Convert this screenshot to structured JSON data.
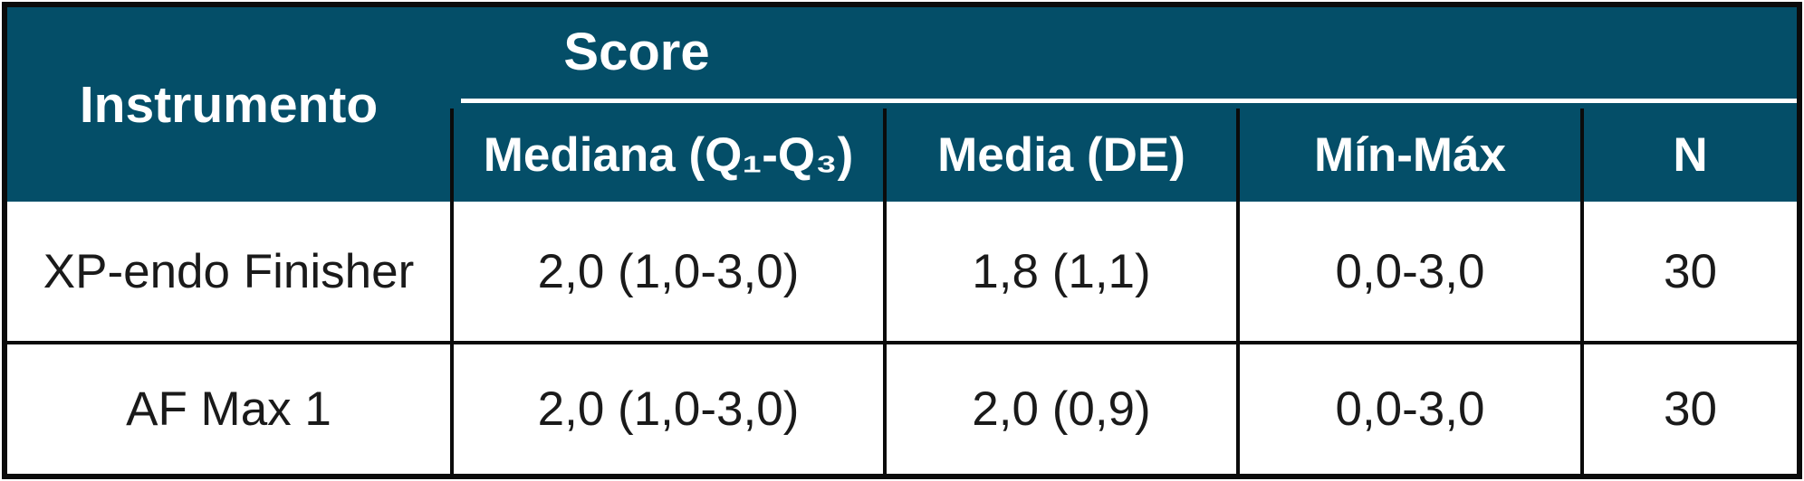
{
  "colors": {
    "header_background": "#044e68",
    "header_text": "#ffffff",
    "grid_lines": "#0b0b0b",
    "row_background": "#ffffff",
    "body_text": "#1a1a1a"
  },
  "table": {
    "corner_header": "Instrumento",
    "group_header": "Score",
    "columns": [
      "Mediana (Q₁-Q₃)",
      "Media (DE)",
      "Mín-Máx",
      "N"
    ],
    "rows": [
      {
        "instrument": "XP-endo Finisher",
        "mediana": "2,0 (1,0-3,0)",
        "media": "1,8 (1,1)",
        "minmax": "0,0-3,0",
        "n": "30"
      },
      {
        "instrument": "AF Max 1",
        "mediana": "2,0 (1,0-3,0)",
        "media": "2,0 (0,9)",
        "minmax": "0,0-3,0",
        "n": "30"
      }
    ]
  },
  "chart_data": {
    "type": "table",
    "title": "",
    "column_group": {
      "label": "Score",
      "spans": [
        "Mediana (Q₁-Q₃)",
        "Media (DE)",
        "Mín-Máx",
        "N"
      ]
    },
    "columns": [
      "Instrumento",
      "Mediana (Q₁-Q₃)",
      "Media (DE)",
      "Mín-Máx",
      "N"
    ],
    "rows": [
      [
        "XP-endo Finisher",
        "2,0 (1,0-3,0)",
        "1,8 (1,1)",
        "0,0-3,0",
        "30"
      ],
      [
        "AF Max 1",
        "2,0 (1,0-3,0)",
        "2,0 (0,9)",
        "0,0-3,0",
        "30"
      ]
    ],
    "numeric": [
      {
        "instrument": "XP-endo Finisher",
        "median": 2.0,
        "q1": 1.0,
        "q3": 3.0,
        "mean": 1.8,
        "sd": 1.1,
        "min": 0.0,
        "max": 3.0,
        "n": 30
      },
      {
        "instrument": "AF Max 1",
        "median": 2.0,
        "q1": 1.0,
        "q3": 3.0,
        "mean": 2.0,
        "sd": 0.9,
        "min": 0.0,
        "max": 3.0,
        "n": 30
      }
    ]
  }
}
